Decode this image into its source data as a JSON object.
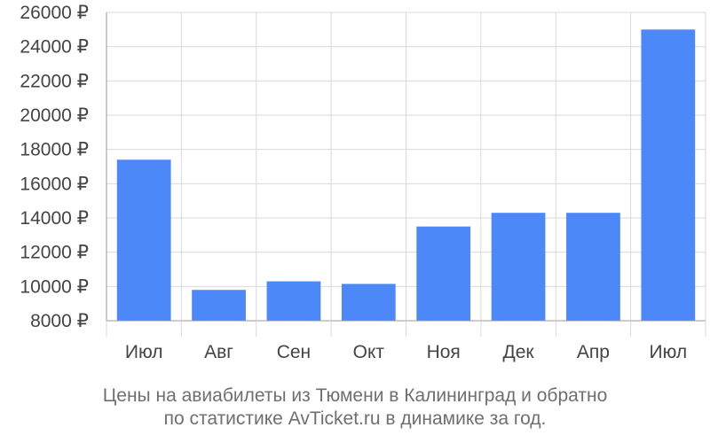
{
  "chart_data": {
    "type": "bar",
    "categories": [
      "Июл",
      "Авг",
      "Сен",
      "Окт",
      "Ноя",
      "Дек",
      "Апр",
      "Июл"
    ],
    "values": [
      17400,
      9800,
      10300,
      10150,
      13500,
      14300,
      14300,
      25000
    ],
    "ylim": [
      8000,
      26000
    ],
    "y_ticks": [
      8000,
      10000,
      12000,
      14000,
      16000,
      18000,
      20000,
      22000,
      24000,
      26000
    ],
    "y_unit": "₽",
    "grid": true,
    "bar_color": "#4d88f9",
    "grid_color": "#d9d9d9",
    "axis_color": "#999999",
    "title": "Цены на авиабилеты из Тюмени в Калининград и обратно",
    "subtitle": "по статистике AvTicket.ru в динамике за год."
  }
}
